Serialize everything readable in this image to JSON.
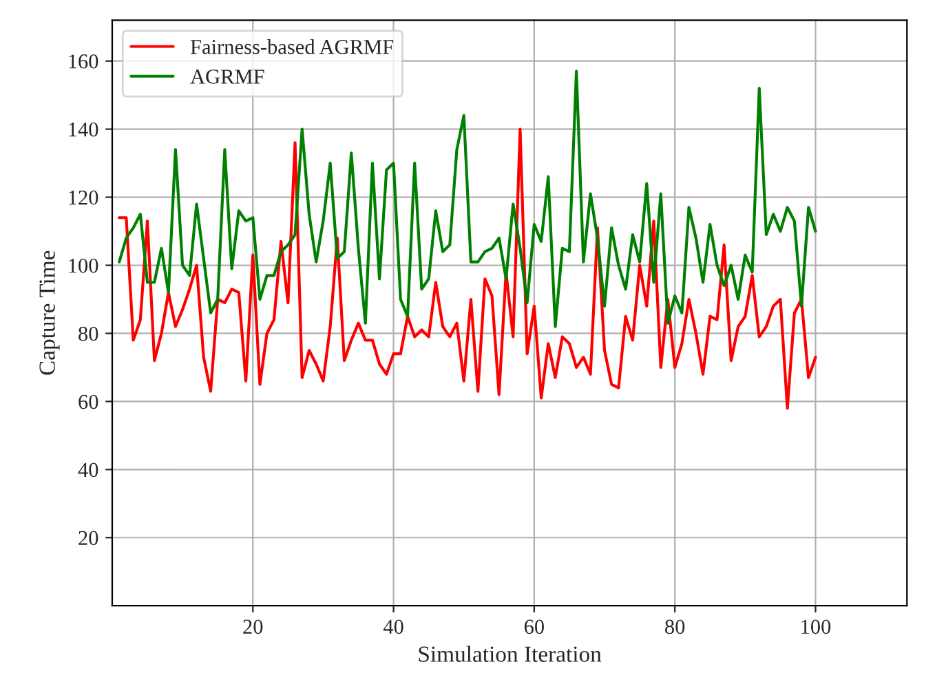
{
  "chart_data": {
    "type": "line",
    "xlabel": "Simulation Iteration",
    "ylabel": "Capture Time",
    "x": [
      1,
      2,
      3,
      4,
      5,
      6,
      7,
      8,
      9,
      10,
      11,
      12,
      13,
      14,
      15,
      16,
      17,
      18,
      19,
      20,
      21,
      22,
      23,
      24,
      25,
      26,
      27,
      28,
      29,
      30,
      31,
      32,
      33,
      34,
      35,
      36,
      37,
      38,
      39,
      40,
      41,
      42,
      43,
      44,
      45,
      46,
      47,
      48,
      49,
      50,
      51,
      52,
      53,
      54,
      55,
      56,
      57,
      58,
      59,
      60,
      61,
      62,
      63,
      64,
      65,
      66,
      67,
      68,
      69,
      70,
      71,
      72,
      73,
      74,
      75,
      76,
      77,
      78,
      79,
      80,
      81,
      82,
      83,
      84,
      85,
      86,
      87,
      88,
      89,
      90,
      91,
      92,
      93,
      94,
      95,
      96,
      97,
      98,
      99,
      100
    ],
    "series": [
      {
        "name": "Fairness-based AGRMF",
        "color": "#ff0000",
        "values": [
          114,
          114,
          78,
          84,
          113,
          72,
          80,
          92,
          82,
          87,
          93,
          100,
          73,
          63,
          90,
          89,
          93,
          92,
          66,
          103,
          65,
          80,
          84,
          107,
          89,
          136,
          67,
          75,
          71,
          66,
          82,
          108,
          72,
          78,
          83,
          78,
          78,
          71,
          68,
          74,
          74,
          85,
          79,
          81,
          79,
          95,
          82,
          79,
          83,
          66,
          90,
          63,
          96,
          91,
          62,
          98,
          79,
          140,
          74,
          88,
          61,
          77,
          67,
          79,
          77,
          70,
          73,
          68,
          111,
          75,
          65,
          64,
          85,
          78,
          100,
          88,
          113,
          70,
          90,
          70,
          77,
          90,
          80,
          68,
          85,
          84,
          106,
          72,
          82,
          85,
          97,
          79,
          82,
          88,
          90,
          58,
          86,
          90,
          67,
          73
        ]
      },
      {
        "name": "AGRMF",
        "color": "#008000",
        "values": [
          101,
          108,
          111,
          115,
          95,
          95,
          105,
          92,
          134,
          100,
          97,
          118,
          102,
          86,
          90,
          134,
          99,
          116,
          113,
          114,
          90,
          97,
          97,
          104,
          106,
          109,
          140,
          115,
          101,
          113,
          130,
          102,
          104,
          133,
          105,
          83,
          130,
          96,
          128,
          130,
          90,
          85,
          130,
          93,
          96,
          116,
          104,
          106,
          134,
          144,
          101,
          101,
          104,
          105,
          108,
          96,
          118,
          105,
          89,
          112,
          107,
          126,
          82,
          105,
          104,
          157,
          101,
          121,
          108,
          88,
          111,
          100,
          93,
          109,
          101,
          124,
          95,
          121,
          83,
          91,
          86,
          117,
          108,
          95,
          112,
          100,
          94,
          100,
          90,
          103,
          98,
          152,
          109,
          115,
          110,
          117,
          113,
          88,
          117,
          110
        ]
      }
    ],
    "xlim": [
      0,
      113
    ],
    "ylim": [
      0,
      172
    ],
    "xticks": [
      20,
      40,
      60,
      80,
      100
    ],
    "yticks": [
      20,
      40,
      60,
      80,
      100,
      120,
      140,
      160
    ],
    "grid": true,
    "legend": "top left"
  }
}
